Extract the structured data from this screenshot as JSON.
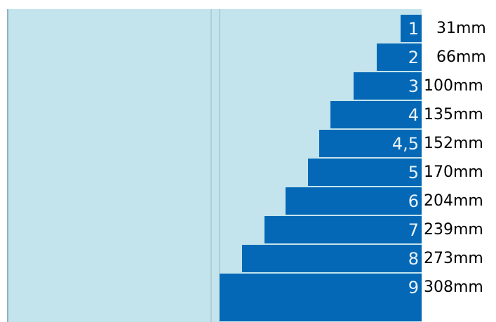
{
  "rows": [
    {
      "label": "1",
      "value": "31mm"
    },
    {
      "label": "2",
      "value": "66mm"
    },
    {
      "label": "3",
      "value": "100mm"
    },
    {
      "label": "4",
      "value": "135mm"
    },
    {
      "label": "4,5",
      "value": "152mm"
    },
    {
      "label": "5",
      "value": "170mm"
    },
    {
      "label": "6",
      "value": "204mm"
    },
    {
      "label": "7",
      "value": "239mm"
    },
    {
      "label": "8",
      "value": "273mm"
    },
    {
      "label": "9",
      "value": "308mm"
    }
  ],
  "colors": {
    "panel_bg": "#c3e4ec",
    "bar": "#0468b6",
    "bar_text": "#e9f3fb",
    "value_text": "#000000"
  }
}
